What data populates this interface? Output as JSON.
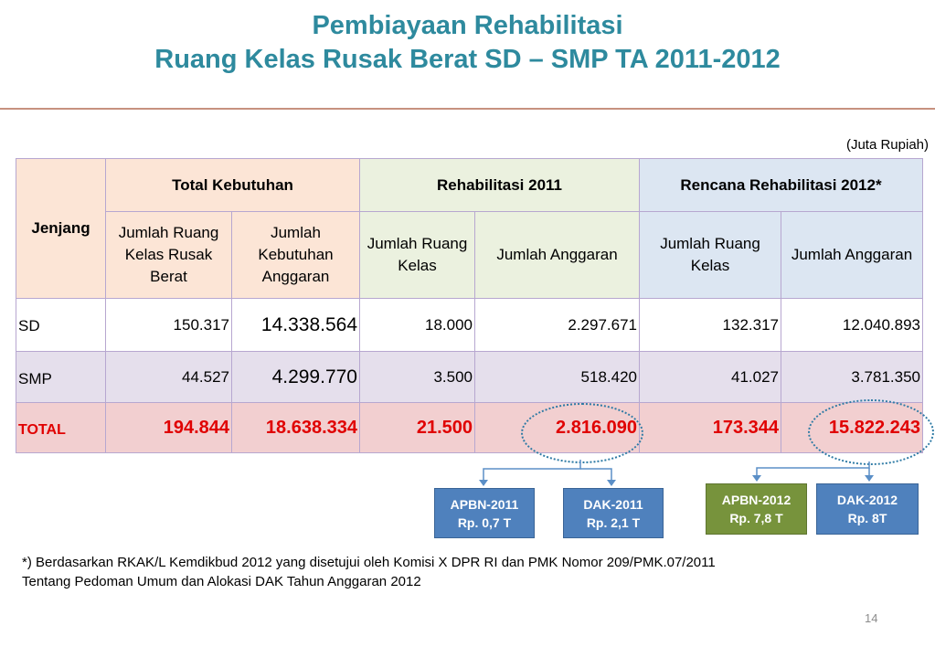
{
  "title": {
    "line1": "Pembiayaan Rehabilitasi",
    "line2": "Ruang Kelas Rusak Berat SD – SMP TA 2011-2012"
  },
  "unit_note": "(Juta Rupiah)",
  "table": {
    "headers": {
      "jenjang": "Jenjang",
      "total_kebutuhan": "Total Kebutuhan",
      "rehab_2011": "Rehabilitasi 2011",
      "rencana_2012": "Rencana Rehabilitasi 2012*"
    },
    "subheaders": {
      "jumlah_ruang_kelas_rusak": "Jumlah Ruang Kelas Rusak Berat",
      "jumlah_kebutuhan_anggaran": "Jumlah Kebutuhan Anggaran",
      "jumlah_ruang_kelas_2011": "Jumlah Ruang Kelas",
      "jumlah_anggaran_2011": "Jumlah Anggaran",
      "jumlah_ruang_kelas_2012": "Jumlah Ruang Kelas",
      "jumlah_anggaran_2012": "Jumlah Anggaran"
    },
    "rows": [
      {
        "jenjang": "SD",
        "rusak": "150.317",
        "kebutuhan": "14.338.564",
        "ruang_2011": "18.000",
        "anggaran_2011": "2.297.671",
        "ruang_2012": "132.317",
        "anggaran_2012": "12.040.893"
      },
      {
        "jenjang": "SMP",
        "rusak": "44.527",
        "kebutuhan": "4.299.770",
        "ruang_2011": "3.500",
        "anggaran_2011": "518.420",
        "ruang_2012": "41.027",
        "anggaran_2012": "3.781.350"
      },
      {
        "jenjang": "TOTAL",
        "rusak": "194.844",
        "kebutuhan": "18.638.334",
        "ruang_2011": "21.500",
        "anggaran_2011": "2.816.090",
        "ruang_2012": "173.344",
        "anggaran_2012": "15.822.243"
      }
    ]
  },
  "boxes": {
    "apbn_2011": {
      "line1": "APBN-2011",
      "line2": "Rp. 0,7 T"
    },
    "dak_2011": {
      "line1": "DAK-2011",
      "line2": "Rp. 2,1 T"
    },
    "apbn_2012": {
      "line1": "APBN-2012",
      "line2": "Rp. 7,8 T"
    },
    "dak_2012": {
      "line1": "DAK-2012",
      "line2": "Rp. 8T"
    }
  },
  "footnote": {
    "line1": "*) Berdasarkan RKAK/L Kemdikbud 2012 yang disetujui oleh Komisi X DPR RI dan PMK Nomor 209/PMK.07/2011",
    "line2": "Tentang Pedoman Umum dan Alokasi DAK Tahun Anggaran 2012"
  },
  "page_number": "14",
  "colors": {
    "title": "#2E8A9E",
    "total_text": "#E00000",
    "box_blue": "#4F81BD",
    "box_green": "#77933C"
  }
}
